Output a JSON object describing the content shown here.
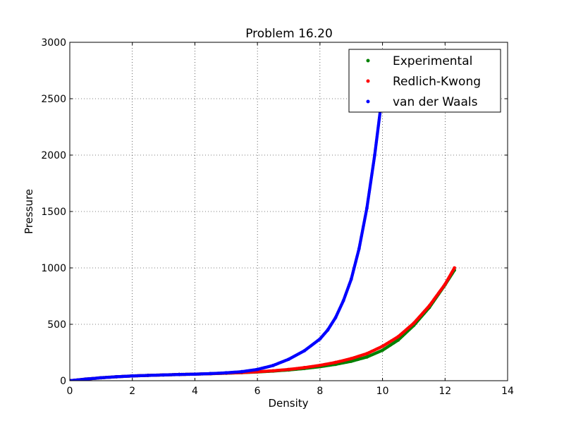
{
  "chart_data": {
    "type": "scatter",
    "title": "Problem 16.20",
    "xlabel": "Density",
    "ylabel": "Pressure",
    "xlim": [
      0,
      14
    ],
    "ylim": [
      0,
      3000
    ],
    "xticks": [
      0,
      2,
      4,
      6,
      8,
      10,
      12,
      14
    ],
    "yticks": [
      0,
      500,
      1000,
      1500,
      2000,
      2500,
      3000
    ],
    "grid": true,
    "legend_position": "top-right",
    "series": [
      {
        "name": "Experimental",
        "color": "#008000",
        "x": [
          0,
          0.5,
          1,
          1.5,
          2,
          2.5,
          3,
          3.5,
          4,
          4.5,
          5,
          5.5,
          6,
          6.5,
          7,
          7.5,
          8,
          8.5,
          9,
          9.5,
          10,
          10.5,
          11,
          11.5,
          12,
          12.3
        ],
        "y": [
          0,
          14,
          26,
          35,
          42,
          47,
          51,
          55,
          58,
          62,
          66,
          71,
          77,
          85,
          95,
          108,
          124,
          145,
          172,
          210,
          270,
          360,
          490,
          650,
          850,
          980
        ]
      },
      {
        "name": "Redlich-Kwong",
        "color": "#ff0000",
        "x": [
          0,
          0.5,
          1,
          1.5,
          2,
          2.5,
          3,
          3.5,
          4,
          4.5,
          5,
          5.5,
          6,
          6.5,
          7,
          7.5,
          8,
          8.5,
          9,
          9.5,
          10,
          10.5,
          11,
          11.5,
          12,
          12.3
        ],
        "y": [
          0,
          14,
          26,
          35,
          42,
          47,
          51,
          55,
          58,
          62,
          67,
          72,
          79,
          88,
          100,
          116,
          136,
          162,
          196,
          240,
          305,
          390,
          510,
          665,
          855,
          1000
        ]
      },
      {
        "name": "van der Waals",
        "color": "#0000ff",
        "x": [
          0,
          0.5,
          1,
          1.5,
          2,
          2.5,
          3,
          3.5,
          4,
          4.5,
          5,
          5.5,
          6,
          6.5,
          7,
          7.5,
          8,
          8.25,
          8.5,
          8.75,
          9,
          9.25,
          9.5,
          9.75,
          10
        ],
        "y": [
          0,
          14,
          26,
          35,
          42,
          47,
          51,
          55,
          58,
          63,
          70,
          80,
          100,
          135,
          190,
          265,
          370,
          450,
          560,
          710,
          900,
          1170,
          1530,
          2000,
          2550
        ]
      }
    ]
  }
}
